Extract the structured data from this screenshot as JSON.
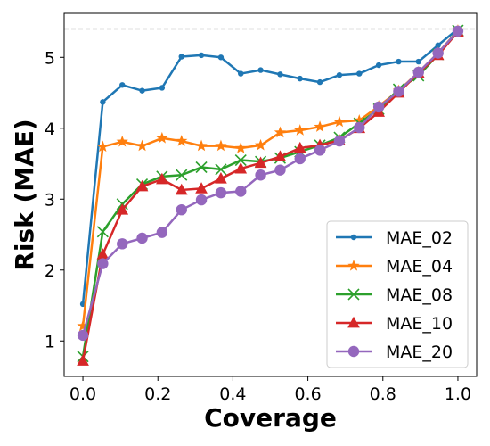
{
  "chart_data": {
    "type": "line",
    "title": "",
    "xlabel": "Coverage",
    "ylabel": "Risk (MAE)",
    "xlim": [
      -0.05,
      1.05
    ],
    "ylim": [
      0.5,
      5.62
    ],
    "xticks": [
      0.0,
      0.2,
      0.4,
      0.6,
      0.8,
      1.0
    ],
    "xtick_labels": [
      "0.0",
      "0.2",
      "0.4",
      "0.6",
      "0.8",
      "1.0"
    ],
    "yticks": [
      1,
      2,
      3,
      4,
      5
    ],
    "ytick_labels": [
      "1",
      "2",
      "3",
      "4",
      "5"
    ],
    "grid": false,
    "legend_position": "lower-right",
    "reference_line": {
      "y": 5.4,
      "style": "dashed",
      "color": "#808080"
    },
    "x": [
      0.0,
      0.053,
      0.105,
      0.158,
      0.211,
      0.263,
      0.316,
      0.368,
      0.421,
      0.474,
      0.526,
      0.579,
      0.632,
      0.684,
      0.737,
      0.789,
      0.842,
      0.895,
      0.947,
      1.0
    ],
    "series": [
      {
        "name": "MAE_02",
        "color": "#1f77b4",
        "marker": "point",
        "values": [
          1.52,
          4.37,
          4.61,
          4.53,
          4.57,
          5.01,
          5.03,
          5.0,
          4.77,
          4.82,
          4.76,
          4.7,
          4.65,
          4.75,
          4.77,
          4.89,
          4.94,
          4.94,
          5.17,
          5.4
        ]
      },
      {
        "name": "MAE_04",
        "color": "#ff7f0e",
        "marker": "star",
        "values": [
          1.21,
          3.74,
          3.81,
          3.75,
          3.86,
          3.82,
          3.75,
          3.75,
          3.72,
          3.76,
          3.94,
          3.97,
          4.02,
          4.09,
          4.11,
          4.31,
          4.53,
          4.79,
          5.06,
          5.38
        ]
      },
      {
        "name": "MAE_08",
        "color": "#2ca02c",
        "marker": "x",
        "values": [
          0.78,
          2.54,
          2.93,
          3.21,
          3.32,
          3.34,
          3.45,
          3.42,
          3.55,
          3.53,
          3.58,
          3.67,
          3.76,
          3.87,
          4.07,
          4.27,
          4.55,
          4.74,
          5.04,
          5.38
        ]
      },
      {
        "name": "MAE_10",
        "color": "#d62728",
        "marker": "triangle",
        "values": [
          0.72,
          2.22,
          2.85,
          3.18,
          3.28,
          3.13,
          3.15,
          3.29,
          3.43,
          3.51,
          3.6,
          3.72,
          3.76,
          3.83,
          4.0,
          4.23,
          4.5,
          4.78,
          5.03,
          5.36
        ]
      },
      {
        "name": "MAE_20",
        "color": "#9467bd",
        "marker": "circle",
        "values": [
          1.08,
          2.09,
          2.37,
          2.45,
          2.53,
          2.85,
          2.99,
          3.09,
          3.11,
          3.34,
          3.41,
          3.57,
          3.69,
          3.82,
          4.01,
          4.3,
          4.52,
          4.79,
          5.06,
          5.37
        ]
      }
    ]
  }
}
